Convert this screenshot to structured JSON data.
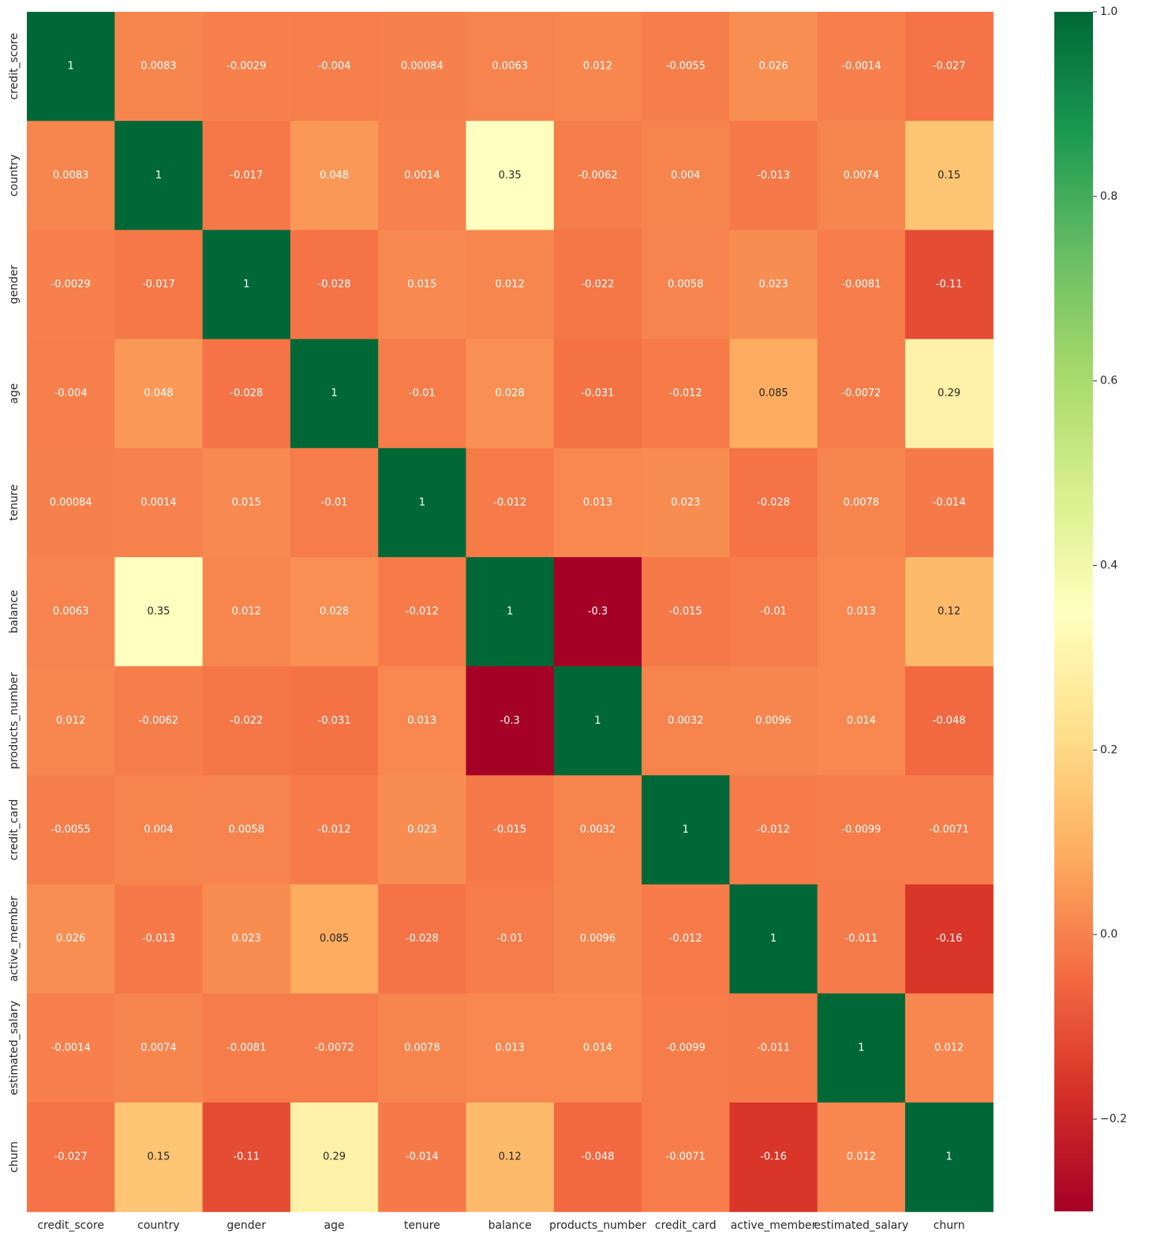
{
  "chart_data": {
    "type": "heatmap",
    "title": "",
    "xlabel": "",
    "ylabel": "",
    "x_categories": [
      "credit_score",
      "country",
      "gender",
      "age",
      "tenure",
      "balance",
      "products_number",
      "credit_card",
      "active_member",
      "estimated_salary",
      "churn"
    ],
    "y_categories": [
      "credit_score",
      "country",
      "gender",
      "age",
      "tenure",
      "balance",
      "products_number",
      "credit_card",
      "active_member",
      "estimated_salary",
      "churn"
    ],
    "values": [
      [
        1,
        0.0083,
        -0.0029,
        -0.004,
        0.00084,
        0.0063,
        0.012,
        -0.0055,
        0.026,
        -0.0014,
        -0.027
      ],
      [
        0.0083,
        1,
        -0.017,
        0.048,
        0.0014,
        0.35,
        -0.0062,
        0.004,
        -0.013,
        0.0074,
        0.15
      ],
      [
        -0.0029,
        -0.017,
        1,
        -0.028,
        0.015,
        0.012,
        -0.022,
        0.0058,
        0.023,
        -0.0081,
        -0.11
      ],
      [
        -0.004,
        0.048,
        -0.028,
        1,
        -0.01,
        0.028,
        -0.031,
        -0.012,
        0.085,
        -0.0072,
        0.29
      ],
      [
        0.00084,
        0.0014,
        0.015,
        -0.01,
        1,
        -0.012,
        0.013,
        0.023,
        -0.028,
        0.0078,
        -0.014
      ],
      [
        0.0063,
        0.35,
        0.012,
        0.028,
        -0.012,
        1,
        -0.3,
        -0.015,
        -0.01,
        0.013,
        0.12
      ],
      [
        0.012,
        -0.0062,
        -0.022,
        -0.031,
        0.013,
        -0.3,
        1,
        0.0032,
        0.0096,
        0.014,
        -0.048
      ],
      [
        -0.0055,
        0.004,
        0.0058,
        -0.012,
        0.023,
        -0.015,
        0.0032,
        1,
        -0.012,
        -0.0099,
        -0.0071
      ],
      [
        0.026,
        -0.013,
        0.023,
        0.085,
        -0.028,
        -0.01,
        0.0096,
        -0.012,
        1,
        -0.011,
        -0.16
      ],
      [
        -0.0014,
        0.0074,
        -0.0081,
        -0.0072,
        0.0078,
        0.013,
        0.014,
        -0.0099,
        -0.011,
        1,
        0.012
      ],
      [
        -0.027,
        0.15,
        -0.11,
        0.29,
        -0.014,
        0.12,
        -0.048,
        -0.0071,
        -0.16,
        0.012,
        1
      ]
    ],
    "annotated": true,
    "colormap": "RdYlGn",
    "vmin": -0.3,
    "vmax": 1.0,
    "colorbar": {
      "placement": "right",
      "ticks": [
        -0.2,
        0.0,
        0.2,
        0.4,
        0.6,
        0.8,
        1.0
      ],
      "tick_labels": [
        "−0.2",
        "0.0",
        "0.2",
        "0.4",
        "0.6",
        "0.8",
        "1.0"
      ]
    },
    "grid": false,
    "legend": "none"
  }
}
